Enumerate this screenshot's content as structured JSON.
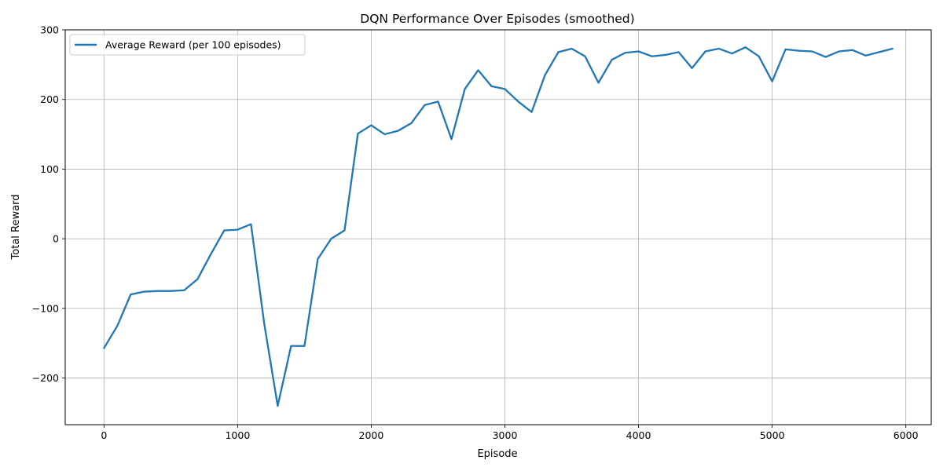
{
  "chart_data": {
    "type": "line",
    "title": "DQN Performance Over Episodes (smoothed)",
    "xlabel": "Episode",
    "ylabel": "Total Reward",
    "xlim": [
      -290,
      6190
    ],
    "ylim": [
      -267,
      300
    ],
    "xticks": [
      0,
      1000,
      2000,
      3000,
      4000,
      5000,
      6000
    ],
    "yticks": [
      -200,
      -100,
      0,
      100,
      200,
      300
    ],
    "grid": true,
    "legend_position": "top-left",
    "series": [
      {
        "name": "Average Reward (per 100 episodes)",
        "color": "#1f77b4",
        "x": [
          0,
          100,
          200,
          300,
          400,
          500,
          600,
          700,
          800,
          900,
          1000,
          1100,
          1200,
          1300,
          1400,
          1500,
          1600,
          1700,
          1800,
          1900,
          2000,
          2100,
          2200,
          2300,
          2400,
          2500,
          2600,
          2700,
          2800,
          2900,
          3000,
          3100,
          3200,
          3300,
          3400,
          3500,
          3600,
          3700,
          3800,
          3900,
          4000,
          4100,
          4200,
          4300,
          4400,
          4500,
          4600,
          4700,
          4800,
          4900,
          5000,
          5100,
          5200,
          5300,
          5400,
          5500,
          5600,
          5700,
          5800,
          5900
        ],
        "y": [
          -157,
          -125,
          -80,
          -76,
          -75,
          -75,
          -74,
          -58,
          -22,
          12,
          13,
          21,
          -123,
          -240,
          -154,
          -154,
          -29,
          0,
          12,
          151,
          163,
          150,
          155,
          166,
          192,
          197,
          143,
          215,
          242,
          219,
          215,
          197,
          182,
          235,
          268,
          273,
          262,
          224,
          257,
          267,
          269,
          262,
          264,
          268,
          245,
          269,
          273,
          266,
          275,
          262,
          226,
          272,
          270,
          269,
          261,
          269,
          271,
          263,
          268,
          273
        ]
      }
    ]
  }
}
